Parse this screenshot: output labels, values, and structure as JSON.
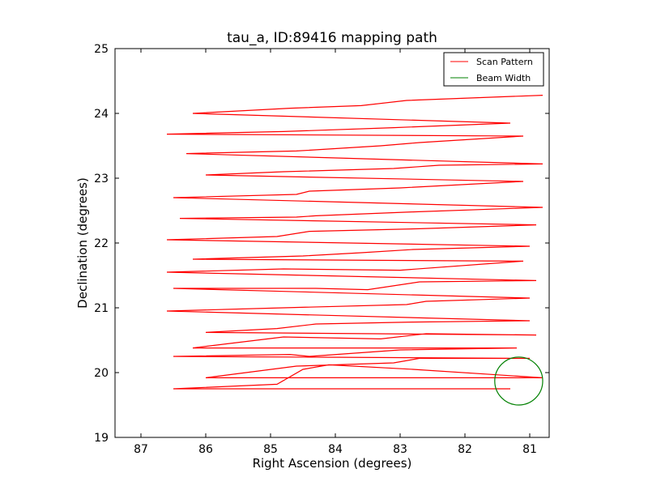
{
  "chart_data": {
    "type": "line",
    "title": "tau_a, ID:89416 mapping path",
    "xlabel": "Right Ascension (degrees)",
    "ylabel": "Declination (degrees)",
    "xlim": [
      87.4,
      80.7
    ],
    "ylim": [
      19,
      25
    ],
    "x_ticks": [
      87,
      86,
      85,
      84,
      83,
      82,
      81
    ],
    "y_ticks": [
      19,
      20,
      21,
      22,
      23,
      24,
      25
    ],
    "x_tick_labels": [
      "87",
      "86",
      "85",
      "84",
      "83",
      "82",
      "81"
    ],
    "y_tick_labels": [
      "19",
      "20",
      "21",
      "22",
      "23",
      "24",
      "25"
    ],
    "legend_position": "top-right",
    "grid": false,
    "series": [
      {
        "name": "Scan Pattern",
        "color": "#ff0000",
        "x": [
          81.3,
          86.5,
          84.9,
          84.5,
          84.1,
          82.8,
          80.8,
          86.0,
          84.6,
          83.1,
          82.7,
          81.0,
          86.5,
          84.7,
          84.4,
          83.0,
          81.2,
          86.2,
          84.8,
          83.3,
          82.6,
          80.9,
          86.0,
          84.9,
          84.3,
          82.8,
          81.0,
          86.6,
          84.8,
          82.9,
          82.6,
          81.0,
          86.5,
          84.3,
          83.5,
          82.7,
          80.9,
          86.6,
          84.8,
          83.0,
          81.1,
          86.2,
          84.5,
          83.6,
          82.8,
          81.0,
          86.6,
          84.9,
          84.4,
          82.7,
          80.9,
          86.4,
          84.6,
          84.3,
          82.8,
          80.8,
          86.5,
          84.6,
          84.4,
          83.0,
          81.1,
          86.0,
          84.8,
          83.1,
          82.4,
          80.8,
          86.3,
          84.6,
          83.3,
          82.7,
          81.1,
          86.6,
          84.8,
          83.1,
          81.3,
          86.2,
          84.7,
          83.6,
          82.9,
          80.8
        ],
        "y": [
          19.75,
          19.75,
          19.82,
          20.05,
          20.12,
          20.05,
          19.92,
          19.92,
          20.1,
          20.15,
          20.22,
          20.22,
          20.25,
          20.28,
          20.25,
          20.35,
          20.38,
          20.38,
          20.55,
          20.52,
          20.6,
          20.58,
          20.62,
          20.68,
          20.75,
          20.78,
          20.8,
          20.95,
          21.0,
          21.05,
          21.1,
          21.15,
          21.3,
          21.3,
          21.28,
          21.4,
          21.42,
          21.55,
          21.6,
          21.58,
          21.72,
          21.75,
          21.8,
          21.85,
          21.9,
          21.95,
          22.05,
          22.1,
          22.18,
          22.22,
          22.28,
          22.38,
          22.4,
          22.42,
          22.48,
          22.55,
          22.7,
          22.75,
          22.8,
          22.85,
          22.95,
          23.05,
          23.1,
          23.15,
          23.2,
          23.22,
          23.38,
          23.42,
          23.5,
          23.55,
          23.65,
          23.68,
          23.72,
          23.78,
          23.85,
          24.0,
          24.08,
          24.12,
          24.2,
          24.28
        ]
      },
      {
        "name": "Beam Width",
        "color": "#008000",
        "center": [
          81.17,
          19.87
        ],
        "radius_deg": 0.37
      }
    ]
  }
}
